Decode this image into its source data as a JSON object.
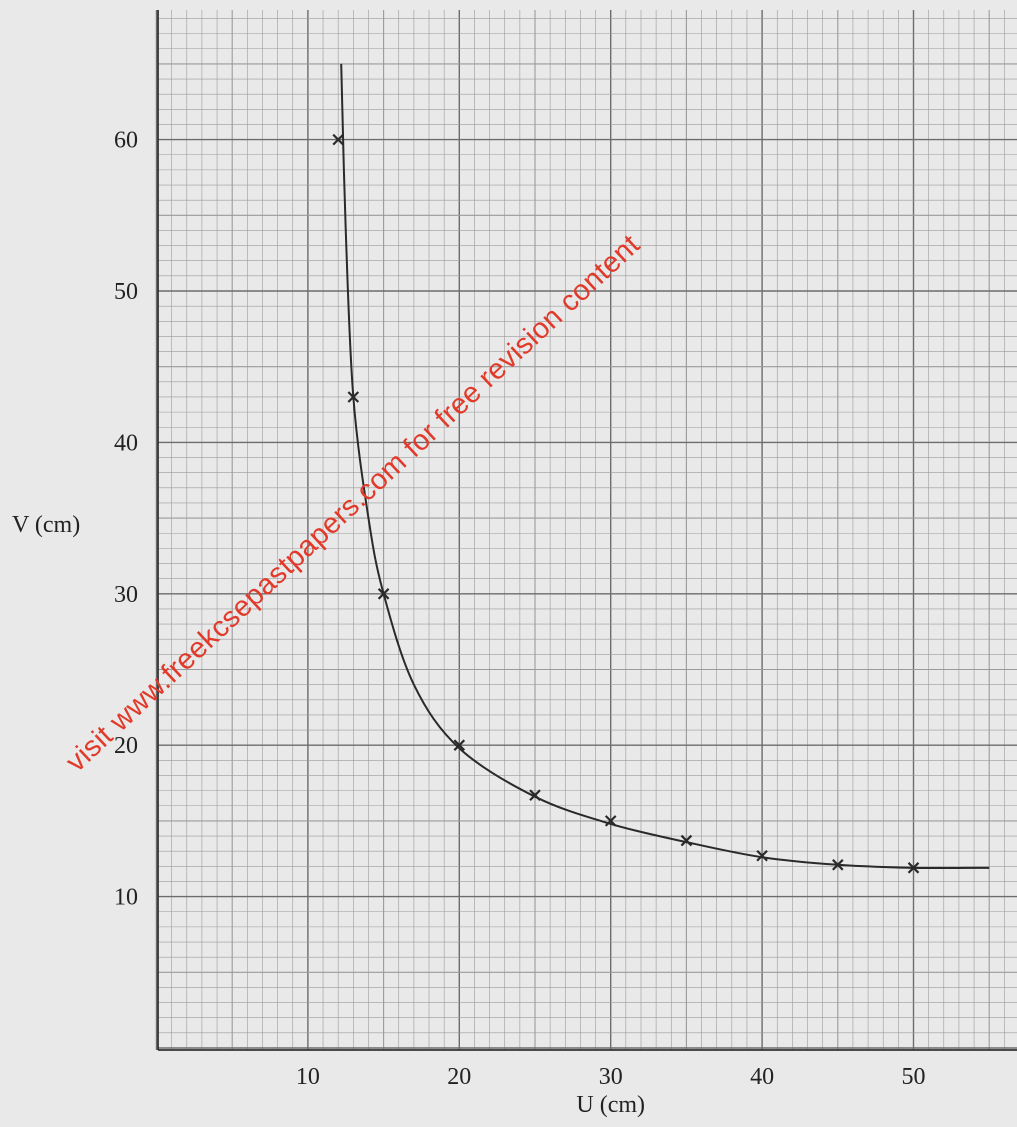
{
  "chart_data": {
    "type": "line",
    "title": "",
    "xlabel": "U (cm)",
    "ylabel": "V (cm)",
    "xlim": [
      0,
      55
    ],
    "ylim": [
      0,
      65
    ],
    "x_ticks": [
      "10",
      "20",
      "30",
      "40",
      "50"
    ],
    "y_ticks": [
      "10",
      "20",
      "30",
      "40",
      "50",
      "60"
    ],
    "grid": true,
    "series": [
      {
        "name": "",
        "marker": "x",
        "x": [
          12,
          13,
          15,
          20,
          25,
          30,
          35,
          40,
          45,
          50
        ],
        "y": [
          60,
          43,
          30,
          20,
          16.7,
          15,
          13.7,
          12.7,
          12.1,
          11.9
        ]
      }
    ],
    "curve": {
      "description": "smooth curve through points",
      "x": [
        12.2,
        12.5,
        13,
        14,
        15,
        17,
        20,
        25,
        30,
        35,
        40,
        45,
        50,
        55
      ],
      "y": [
        65,
        54,
        43,
        35,
        30,
        24,
        19.8,
        16.6,
        14.8,
        13.6,
        12.6,
        12.1,
        11.9,
        11.9
      ]
    }
  },
  "colors": {
    "background": "#e9e9e9",
    "grid_minor": "#9a9a9a",
    "grid_major": "#6c6c6c",
    "curve": "#2a2a2a",
    "marker": "#2a2a2a",
    "watermark": "#e23a2a"
  },
  "watermark": "visit www.freekcsepastpapers.com for free revision content"
}
